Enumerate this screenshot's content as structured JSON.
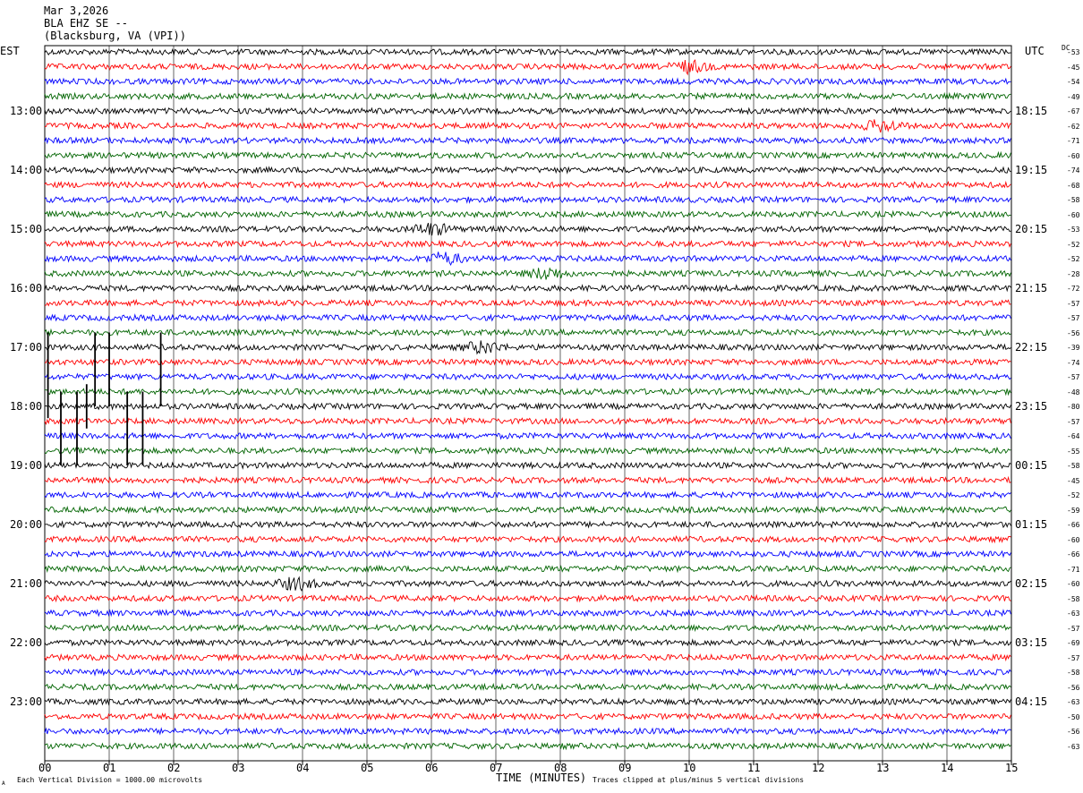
{
  "header": {
    "date": "Mar 3,2026",
    "station": "BLA EHZ SE --",
    "location": "(Blacksburg, VA (VPI))"
  },
  "labels": {
    "left_zone": "EST",
    "right_zone": "UTC",
    "dc_header": "DC",
    "x_axis_title": "TIME (MINUTES)",
    "scale_note": "Each Vertical Division = 1000.00 microvolts",
    "clip_note": "Traces clipped at plus/minus 5 vertical divisions",
    "corner_mark": "A"
  },
  "colors": {
    "trace_cycle": [
      "#000000",
      "#ff0000",
      "#0000ff",
      "#006400"
    ],
    "grid": "#000000"
  },
  "chart_data": {
    "type": "line",
    "description_units": "seismogram helicorder, 15 minute rows",
    "x_ticks": [
      "00",
      "01",
      "02",
      "03",
      "04",
      "05",
      "06",
      "07",
      "08",
      "09",
      "10",
      "11",
      "12",
      "13",
      "14",
      "15"
    ],
    "xlim": [
      0,
      15
    ],
    "rows_per_hour": 4,
    "left_hour_labels": [
      "13:00",
      "14:00",
      "15:00",
      "16:00",
      "17:00",
      "18:00",
      "19:00",
      "20:00",
      "21:00",
      "22:00",
      "23:00"
    ],
    "right_hour_labels": [
      "18:15",
      "19:15",
      "20:15",
      "21:15",
      "22:15",
      "23:15",
      "00:15",
      "01:15",
      "02:15",
      "03:15",
      "04:15"
    ],
    "dc_offsets": [
      -53,
      -45,
      -54,
      -49,
      -67,
      -62,
      -71,
      -60,
      -74,
      -68,
      -58,
      -60,
      -53,
      -52,
      -52,
      -28,
      -72,
      -57,
      -57,
      -56,
      -39,
      -74,
      -57,
      -48,
      -80,
      -57,
      -64,
      -55,
      -58,
      -45,
      -52,
      -59,
      -66,
      -60,
      -66,
      -71,
      -60,
      -58,
      -63,
      -57,
      -69,
      -57,
      -58,
      -56,
      -63,
      -50,
      -56,
      -63
    ],
    "events": [
      {
        "row": 15,
        "minute": 7.8,
        "kind": "burst"
      },
      {
        "row": 14,
        "minute": 6.2,
        "kind": "burst"
      },
      {
        "row": 12,
        "minute": 6.0,
        "kind": "burst"
      },
      {
        "row": 20,
        "minute": 6.8,
        "kind": "burst"
      },
      {
        "row": 36,
        "minute": 3.9,
        "kind": "burst"
      },
      {
        "row": 1,
        "minute": 10.0,
        "kind": "burst"
      },
      {
        "row": 5,
        "minute": 13.0,
        "kind": "burst"
      }
    ],
    "spikes": [
      {
        "minute": 0.05,
        "from_row": 19.0,
        "to_row": 24.8
      },
      {
        "minute": 0.78,
        "from_row": 19.0,
        "to_row": 24.0
      },
      {
        "minute": 1.0,
        "from_row": 19.0,
        "to_row": 24.0
      },
      {
        "minute": 1.8,
        "from_row": 19.0,
        "to_row": 24.0
      },
      {
        "minute": 0.25,
        "from_row": 23.0,
        "to_row": 28.0
      },
      {
        "minute": 0.5,
        "from_row": 23.0,
        "to_row": 28.0
      },
      {
        "minute": 1.28,
        "from_row": 23.0,
        "to_row": 28.0
      },
      {
        "minute": 1.52,
        "from_row": 23.0,
        "to_row": 28.0
      },
      {
        "minute": 0.65,
        "from_row": 22.5,
        "to_row": 25.5
      }
    ]
  }
}
